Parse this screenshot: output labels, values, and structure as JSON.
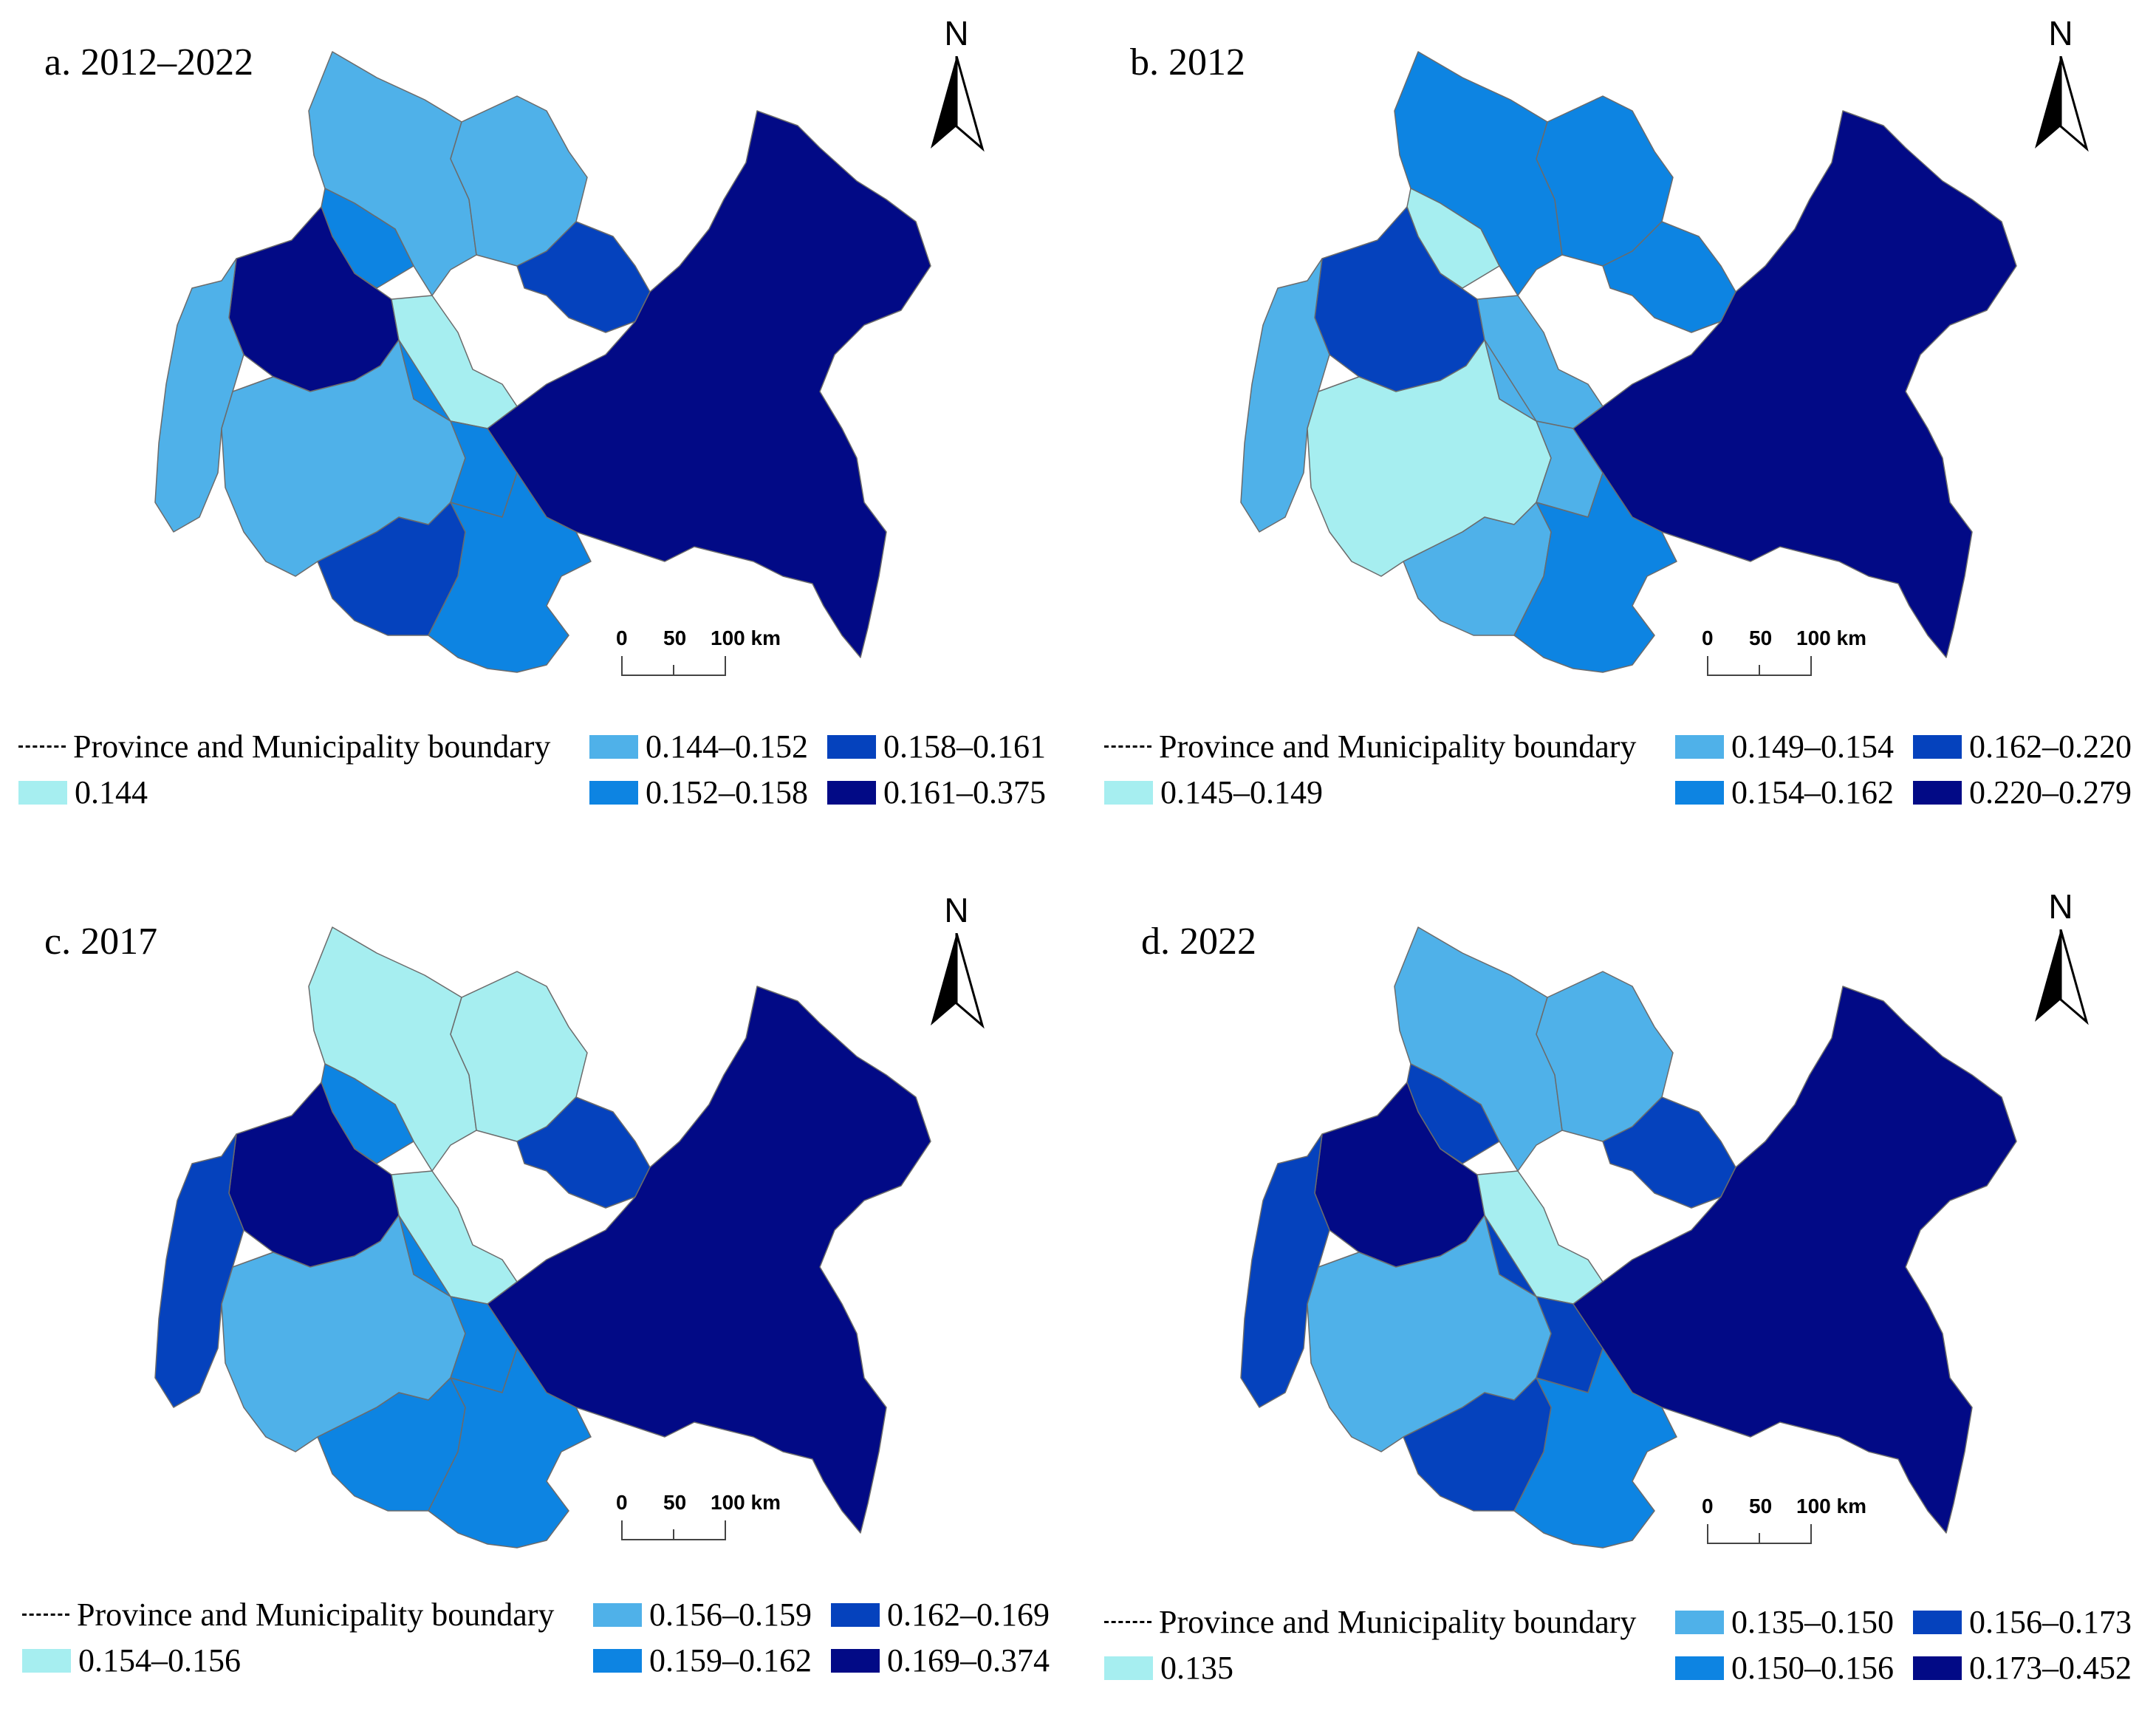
{
  "colors": {
    "c1": "#a6eef0",
    "c2": "#4fb1e9",
    "c3": "#0d84e2",
    "c4": "#0542bd",
    "c5": "#020a86",
    "stroke": "#6b6b6b",
    "background": "#ffffff"
  },
  "north_label": "N",
  "scale": {
    "zero": "0",
    "mid": "50",
    "end": "100 km"
  },
  "boundary_label": "Province and Municipality boundary",
  "panels": [
    {
      "title": "a. 2012–2022",
      "legend": [
        "0.144",
        "0.144–0.152",
        "0.152–0.158",
        "0.158–0.161",
        "0.161–0.375"
      ],
      "region_classes": [
        "c2",
        "c3",
        "c5",
        "c2",
        "c1",
        "c2",
        "c3",
        "c4",
        "c2",
        "c4",
        "c5",
        "c3"
      ]
    },
    {
      "title": "b. 2012",
      "legend": [
        "0.145–0.149",
        "0.149–0.154",
        "0.154–0.162",
        "0.162–0.220",
        "0.220–0.279"
      ],
      "region_classes": [
        "c3",
        "c1",
        "c4",
        "c2",
        "c2",
        "c1",
        "c2",
        "c2",
        "c3",
        "c3",
        "c5",
        "c3"
      ]
    },
    {
      "title": "c. 2017",
      "legend": [
        "0.154–0.156",
        "0.156–0.159",
        "0.159–0.162",
        "0.162–0.169",
        "0.169–0.374"
      ],
      "region_classes": [
        "c1",
        "c3",
        "c5",
        "c4",
        "c1",
        "c2",
        "c3",
        "c3",
        "c1",
        "c4",
        "c5",
        "c3"
      ]
    },
    {
      "title": "d. 2022",
      "legend": [
        "0.135",
        "0.135–0.150",
        "0.150–0.156",
        "0.156–0.173",
        "0.173–0.452"
      ],
      "region_classes": [
        "c2",
        "c4",
        "c5",
        "c4",
        "c1",
        "c2",
        "c4",
        "c4",
        "c2",
        "c4",
        "c5",
        "c3"
      ]
    }
  ]
}
